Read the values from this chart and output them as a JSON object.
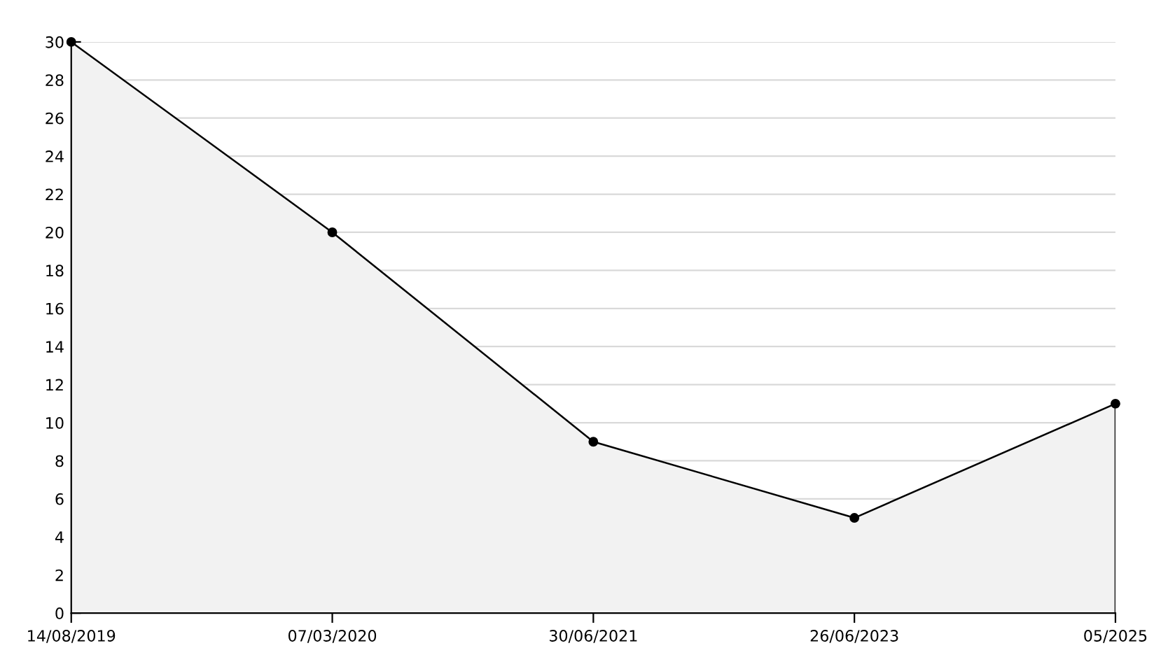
{
  "chart_data": {
    "type": "area",
    "categories": [
      "14/08/2019",
      "07/03/2020",
      "30/06/2021",
      "26/06/2023",
      "05/2025"
    ],
    "series": [
      {
        "color": "#000000",
        "values": [
          30,
          20,
          9,
          5,
          11
        ]
      }
    ],
    "ylim": [
      0,
      30
    ],
    "yticks": [
      0,
      {
        "value": 1,
        "label": null
      },
      2,
      {
        "value": 3,
        "label": null
      },
      4,
      {
        "value": 5,
        "label": null
      },
      6,
      {
        "value": 7,
        "label": null
      },
      8,
      {
        "value": 9,
        "label": null
      },
      10,
      {
        "value": 11,
        "label": null
      },
      12,
      {
        "value": 13,
        "label": null
      },
      14,
      {
        "value": 15,
        "label": null
      },
      16,
      {
        "value": 17,
        "label": null
      },
      18,
      {
        "value": 19,
        "label": null
      },
      20,
      {
        "value": 21,
        "label": null
      },
      22,
      {
        "value": 23,
        "label": null
      },
      24,
      {
        "value": 25,
        "label": null
      },
      26,
      {
        "value": 27,
        "label": null
      },
      28,
      {
        "value": 29,
        "label": null
      },
      30
    ],
    "grid": "y",
    "marker": "circle",
    "line_style": "solid",
    "legend": false
  }
}
